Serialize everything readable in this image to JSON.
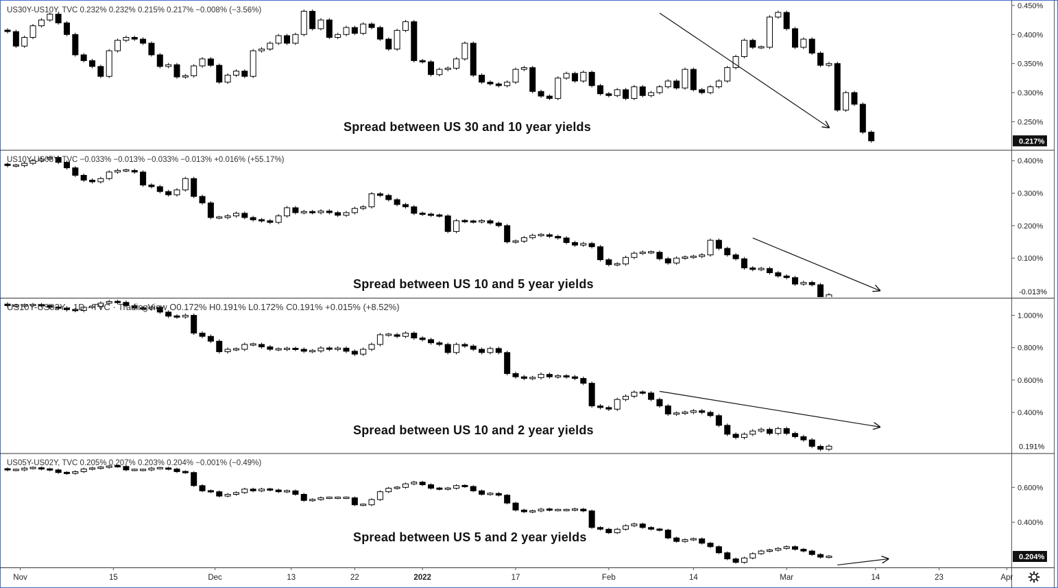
{
  "panels": [
    {
      "header": "US30Y-US10Y, TVC  0.232%  0.232%  0.215%  0.217%  −0.008% (−3.56%)",
      "annotation": "Spread between US 30 and 10 year yields",
      "last_label": "0.217%",
      "last_value": 0.217,
      "last_style": "dark",
      "ticks": [
        "0.250%",
        "0.300%",
        "0.350%",
        "0.400%",
        "0.450%"
      ],
      "tick_values": [
        0.25,
        0.3,
        0.35,
        0.4,
        0.45
      ],
      "ylim": [
        0.202,
        0.457
      ],
      "trend": {
        "from": [
          77,
          0.437
        ],
        "to": [
          97,
          0.24
        ]
      },
      "closes": [
        0.405,
        0.38,
        0.395,
        0.415,
        0.425,
        0.435,
        0.42,
        0.4,
        0.365,
        0.355,
        0.345,
        0.328,
        0.372,
        0.39,
        0.395,
        0.392,
        0.385,
        0.365,
        0.345,
        0.348,
        0.327,
        0.329,
        0.346,
        0.358,
        0.347,
        0.318,
        0.33,
        0.337,
        0.328,
        0.372,
        0.375,
        0.385,
        0.398,
        0.385,
        0.4,
        0.44,
        0.41,
        0.425,
        0.395,
        0.4,
        0.412,
        0.402,
        0.418,
        0.412,
        0.392,
        0.375,
        0.407,
        0.422,
        0.355,
        0.353,
        0.331,
        0.34,
        0.342,
        0.358,
        0.385,
        0.33,
        0.318,
        0.315,
        0.312,
        0.318,
        0.34,
        0.343,
        0.302,
        0.294,
        0.29,
        0.325,
        0.333,
        0.32,
        0.335,
        0.312,
        0.298,
        0.295,
        0.305,
        0.29,
        0.31,
        0.295,
        0.3,
        0.31,
        0.32,
        0.308,
        0.34,
        0.305,
        0.3,
        0.31,
        0.32,
        0.343,
        0.362,
        0.39,
        0.378,
        0.378,
        0.43,
        0.438,
        0.41,
        0.378,
        0.392,
        0.368,
        0.347,
        0.35,
        0.27,
        0.3,
        0.28,
        0.232,
        0.217
      ]
    },
    {
      "header": "US10Y-US05Y, TVC  −0.033%  −0.013%  −0.033%  −0.013%  +0.016% (+55.17%)",
      "annotation": "Spread between US 10 and 5 year yields",
      "last_label": "-0.013%",
      "last_value": -0.013,
      "last_style": "light",
      "ticks": [
        "0.100%",
        "0.200%",
        "0.300%",
        "0.400%"
      ],
      "tick_values": [
        0.1,
        0.2,
        0.3,
        0.4
      ],
      "ylim": [
        -0.02,
        0.43
      ],
      "trend": {
        "from": [
          88,
          0.162
        ],
        "to": [
          103,
          -0.0
        ]
      },
      "closes": [
        0.385,
        0.385,
        0.392,
        0.4,
        0.405,
        0.41,
        0.395,
        0.378,
        0.355,
        0.34,
        0.335,
        0.345,
        0.365,
        0.37,
        0.37,
        0.365,
        0.325,
        0.32,
        0.305,
        0.295,
        0.31,
        0.345,
        0.29,
        0.27,
        0.225,
        0.225,
        0.23,
        0.238,
        0.225,
        0.218,
        0.215,
        0.21,
        0.23,
        0.255,
        0.24,
        0.243,
        0.24,
        0.245,
        0.24,
        0.232,
        0.24,
        0.253,
        0.258,
        0.298,
        0.293,
        0.28,
        0.265,
        0.258,
        0.238,
        0.235,
        0.232,
        0.23,
        0.182,
        0.215,
        0.213,
        0.212,
        0.215,
        0.208,
        0.2,
        0.15,
        0.152,
        0.163,
        0.17,
        0.172,
        0.167,
        0.162,
        0.148,
        0.14,
        0.145,
        0.135,
        0.095,
        0.08,
        0.082,
        0.102,
        0.115,
        0.118,
        0.118,
        0.098,
        0.085,
        0.1,
        0.103,
        0.105,
        0.11,
        0.155,
        0.13,
        0.11,
        0.098,
        0.07,
        0.065,
        0.068,
        0.055,
        0.045,
        0.04,
        0.02,
        0.025,
        0.018,
        -0.033,
        -0.013
      ]
    },
    {
      "header": "US10Y-US02Y · 1D · TVC · TradingView  O0.172%  H0.191%  L0.172%  C0.191%  +0.015% (+8.52%)",
      "annotation": "Spread between US 10 and 2 year yields",
      "last_label": "0.191%",
      "last_value": 0.191,
      "last_style": "light",
      "ticks": [
        "0.400%",
        "0.600%",
        "0.800%",
        "1.000%"
      ],
      "tick_values": [
        0.4,
        0.6,
        0.8,
        1.0
      ],
      "ylim": [
        0.15,
        1.1
      ],
      "trend": {
        "from": [
          77,
          0.53
        ],
        "to": [
          103,
          0.31
        ]
      },
      "closes": [
        1.06,
        1.06,
        1.062,
        1.065,
        1.06,
        1.05,
        1.045,
        1.035,
        1.03,
        1.05,
        1.055,
        1.075,
        1.085,
        1.08,
        1.06,
        1.045,
        1.04,
        1.05,
        1.02,
        0.995,
        0.99,
        1.0,
        0.89,
        0.87,
        0.84,
        0.775,
        0.79,
        0.79,
        0.82,
        0.82,
        0.805,
        0.79,
        0.79,
        0.795,
        0.79,
        0.778,
        0.78,
        0.798,
        0.79,
        0.797,
        0.778,
        0.76,
        0.79,
        0.82,
        0.88,
        0.88,
        0.87,
        0.89,
        0.86,
        0.85,
        0.83,
        0.82,
        0.77,
        0.82,
        0.81,
        0.79,
        0.77,
        0.795,
        0.77,
        0.64,
        0.62,
        0.61,
        0.615,
        0.635,
        0.62,
        0.625,
        0.62,
        0.61,
        0.58,
        0.44,
        0.43,
        0.42,
        0.48,
        0.5,
        0.525,
        0.52,
        0.48,
        0.44,
        0.39,
        0.395,
        0.4,
        0.41,
        0.4,
        0.38,
        0.32,
        0.265,
        0.245,
        0.265,
        0.285,
        0.295,
        0.27,
        0.3,
        0.27,
        0.25,
        0.23,
        0.19,
        0.172,
        0.191
      ]
    },
    {
      "header": "US05Y-US02Y, TVC  0.205%  0.207%  0.203%  0.204%  −0.001% (−0.49%)",
      "annotation": "Spread between US 5 and 2 year yields",
      "last_label": "0.204%",
      "last_value": 0.204,
      "last_style": "dark",
      "ticks": [
        "0.400%",
        "0.600%"
      ],
      "tick_values": [
        0.4,
        0.6
      ],
      "ylim": [
        0.145,
        0.79
      ],
      "trend": {
        "from": [
          98,
          0.155
        ],
        "to": [
          104,
          0.19
        ]
      },
      "closes": [
        0.7,
        0.7,
        0.71,
        0.712,
        0.705,
        0.7,
        0.685,
        0.68,
        0.69,
        0.705,
        0.71,
        0.715,
        0.722,
        0.72,
        0.7,
        0.7,
        0.7,
        0.71,
        0.71,
        0.705,
        0.69,
        0.685,
        0.61,
        0.58,
        0.575,
        0.55,
        0.56,
        0.57,
        0.59,
        0.58,
        0.59,
        0.585,
        0.575,
        0.58,
        0.56,
        0.525,
        0.53,
        0.54,
        0.54,
        0.54,
        0.54,
        0.5,
        0.5,
        0.53,
        0.575,
        0.595,
        0.6,
        0.62,
        0.63,
        0.615,
        0.595,
        0.59,
        0.595,
        0.61,
        0.605,
        0.58,
        0.56,
        0.565,
        0.555,
        0.51,
        0.47,
        0.46,
        0.465,
        0.475,
        0.47,
        0.47,
        0.47,
        0.475,
        0.465,
        0.37,
        0.36,
        0.34,
        0.36,
        0.38,
        0.39,
        0.37,
        0.36,
        0.355,
        0.31,
        0.29,
        0.3,
        0.305,
        0.28,
        0.26,
        0.225,
        0.19,
        0.17,
        0.195,
        0.22,
        0.235,
        0.24,
        0.25,
        0.26,
        0.245,
        0.235,
        0.215,
        0.2,
        0.204
      ]
    }
  ],
  "x_axis": {
    "labels": [
      "Nov",
      "15",
      "Dec",
      "13",
      "22",
      "2022",
      "17",
      "Feb",
      "14",
      "Mar",
      "14",
      "23",
      "Apr"
    ],
    "positions": [
      1.5,
      12.5,
      24.5,
      33.5,
      41,
      49,
      60,
      71,
      81,
      92,
      102.5,
      110,
      118
    ],
    "bold": [
      false,
      false,
      false,
      false,
      false,
      true,
      false,
      false,
      false,
      false,
      false,
      false,
      false
    ]
  },
  "settings_icon": "gear-icon"
}
